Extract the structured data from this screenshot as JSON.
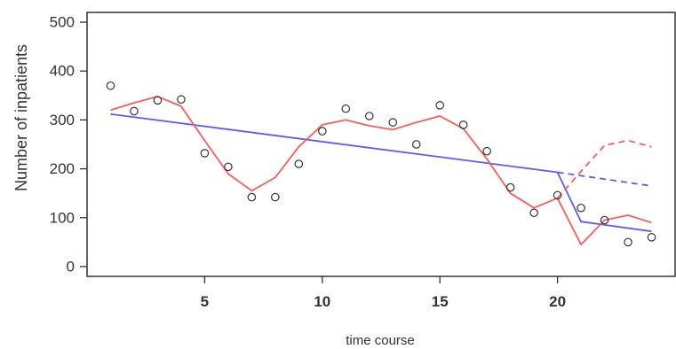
{
  "chart_data": {
    "type": "line",
    "xlabel": "time course",
    "ylabel": "Number of inpatients",
    "xlim": [
      0,
      25
    ],
    "ylim": [
      -20,
      520
    ],
    "xticks": [
      5,
      10,
      15,
      20
    ],
    "yticks": [
      0,
      100,
      200,
      300,
      400,
      500
    ],
    "colors": {
      "observed": "#333333",
      "red_fit": "#ff5a5a",
      "blue_fit": "#5a5aff",
      "axis": "#333333"
    },
    "observed": {
      "x": [
        1,
        2,
        3,
        4,
        5,
        6,
        7,
        8,
        9,
        10,
        11,
        12,
        13,
        14,
        15,
        16,
        17,
        18,
        19,
        20,
        21,
        22,
        23,
        24
      ],
      "y": [
        370,
        318,
        340,
        342,
        232,
        204,
        142,
        142,
        210,
        277,
        323,
        308,
        295,
        250,
        330,
        290,
        236,
        162,
        110,
        146,
        120,
        95,
        50,
        60
      ]
    },
    "red_fit": {
      "x": [
        1,
        2,
        3,
        4,
        5,
        6,
        7,
        8,
        9,
        10,
        11,
        12,
        13,
        14,
        15,
        16,
        17,
        18,
        19,
        20,
        21,
        22,
        23,
        24
      ],
      "y": [
        320,
        335,
        348,
        328,
        258,
        190,
        155,
        182,
        245,
        290,
        300,
        288,
        280,
        295,
        308,
        282,
        220,
        150,
        120,
        140,
        45,
        95,
        105,
        90
      ]
    },
    "red_counterfactual": {
      "x": [
        20,
        21,
        22,
        23,
        24
      ],
      "y": [
        140,
        195,
        248,
        258,
        245
      ]
    },
    "blue_fit": {
      "x": [
        1,
        20,
        21,
        24
      ],
      "y": [
        312,
        193,
        92,
        72
      ]
    },
    "blue_counterfactual": {
      "x": [
        20,
        24
      ],
      "y": [
        193,
        165
      ]
    }
  }
}
